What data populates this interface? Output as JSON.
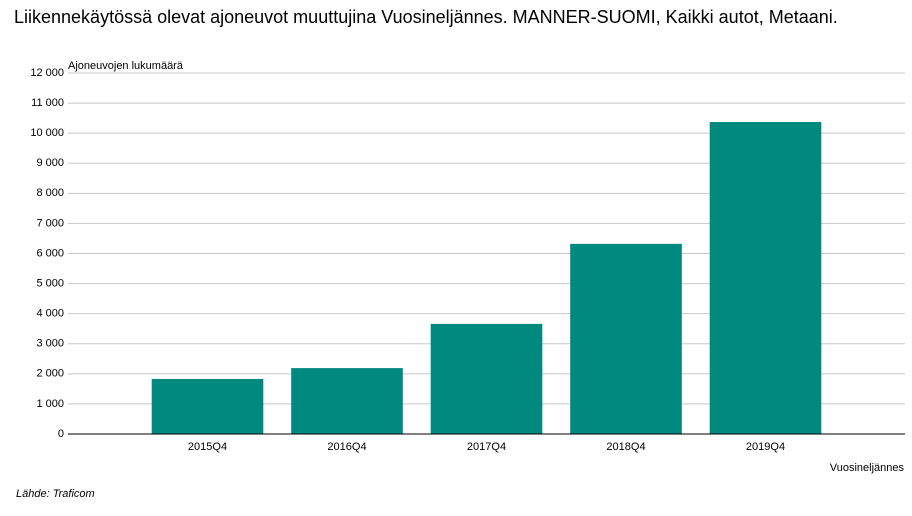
{
  "chart_data": {
    "type": "bar",
    "title": "Liikennekäytössä olevat ajoneuvot muuttujina Vuosineljännes. MANNER-SUOMI, Kaikki autot, Metaani.",
    "y_label": "Ajoneuvojen lukumäärä",
    "x_label": "Vuosineljännes",
    "source": "Lähde: Traficom",
    "categories": [
      "2015Q4",
      "2016Q4",
      "2017Q4",
      "2018Q4",
      "2019Q4"
    ],
    "values": [
      1830,
      2190,
      3660,
      6320,
      10370
    ],
    "color": "#00897f",
    "ylim": [
      0,
      12000
    ],
    "yticks": [
      0,
      {
        "value": 1000,
        "label": "1 000"
      },
      {
        "value": 2000,
        "label": "2 000"
      },
      {
        "value": 3000,
        "label": "3 000"
      },
      {
        "value": 4000,
        "label": "4 000"
      },
      {
        "value": 5000,
        "label": "5 000"
      },
      {
        "value": 6000,
        "label": "6 000"
      },
      {
        "value": 7000,
        "label": "7 000"
      },
      {
        "value": 8000,
        "label": "8 000"
      },
      {
        "value": 9000,
        "label": "9 000"
      },
      {
        "value": 10000,
        "label": "10 000"
      },
      {
        "value": 11000,
        "label": "11 000"
      },
      {
        "value": 12000,
        "label": "12 000"
      }
    ],
    "grid": true
  }
}
